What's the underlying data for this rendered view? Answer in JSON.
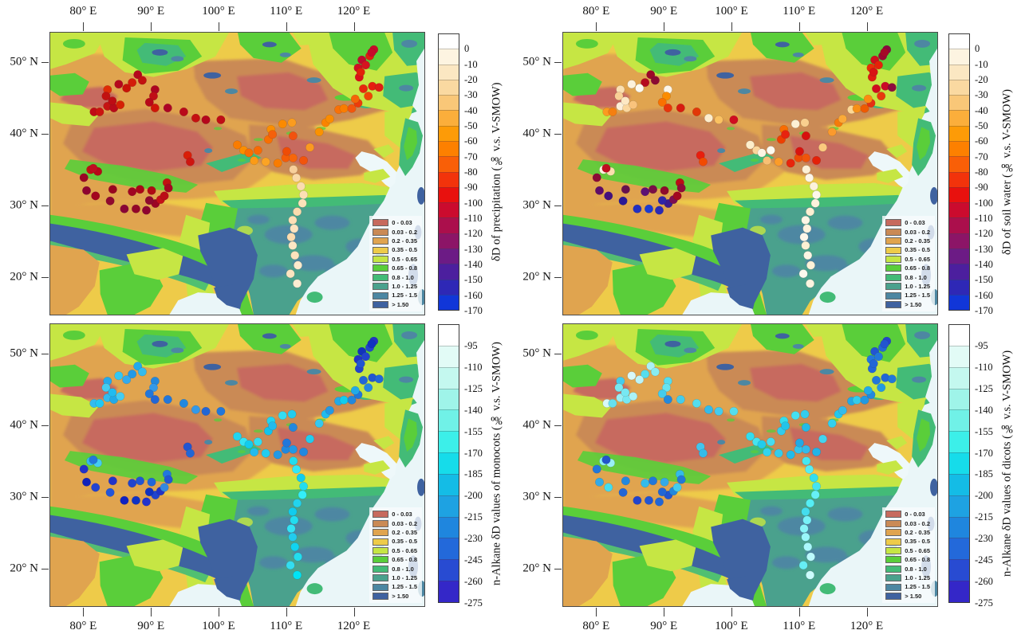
{
  "chart_data": {
    "type": "scatter",
    "subtype": "four-panel geographic map scatter over classified aridity basemap",
    "x_ticks": [
      "80° E",
      "90° E",
      "100° E",
      "110° E",
      "120° E"
    ],
    "x_tick_positions_pct": [
      9,
      27,
      45,
      63,
      81
    ],
    "y_ticks": [
      "50° N",
      "40° N",
      "30° N",
      "20° N"
    ],
    "y_tick_positions_pct": [
      10.7,
      36,
      61.3,
      86.4
    ],
    "background_classes": {
      "labels": [
        "0 - 0.03",
        "0.03 - 0.2",
        "0.2 - 0.35",
        "0.35 - 0.5",
        "0.5 - 0.65",
        "0.65 - 0.8",
        "0.8 - 1.0",
        "1.0 - 1.25",
        "1.25 - 1.5",
        "> 1.50"
      ],
      "colors": [
        "#c76a5e",
        "#ca8a55",
        "#e0a44f",
        "#eecb49",
        "#c6e644",
        "#5ace3a",
        "#43bb77",
        "#4aa18d",
        "#4d87a2",
        "#3f62a0"
      ]
    },
    "colorbars": {
      "water": {
        "ticks": [
          "0",
          "-10",
          "-20",
          "-30",
          "-40",
          "-50",
          "-60",
          "-70",
          "-80",
          "-90",
          "-100",
          "-110",
          "-120",
          "-130",
          "-140",
          "-150",
          "-160",
          "-170"
        ],
        "colors": [
          "#ffffff",
          "#fdf4e1",
          "#fbe7c2",
          "#fad9a1",
          "#f9c778",
          "#fbae3b",
          "#fd9b07",
          "#fd8000",
          "#f95f07",
          "#f2330b",
          "#e8110e",
          "#cb0b2e",
          "#ab0f4c",
          "#8c1567",
          "#6c1b85",
          "#4c1f9e",
          "#2e28b6",
          "#1136d8"
        ],
        "range": [
          0,
          -170
        ],
        "step": -10
      },
      "alkane": {
        "ticks": [
          "-95",
          "-110",
          "-125",
          "-140",
          "-155",
          "-170",
          "-185",
          "-200",
          "-215",
          "-230",
          "-245",
          "-260",
          "-275"
        ],
        "colors": [
          "#ffffff",
          "#e2fbf6",
          "#c4f8ef",
          "#9ff4e9",
          "#70f1e7",
          "#3cefe9",
          "#16dcea",
          "#14bce6",
          "#1ea2e2",
          "#1f86de",
          "#2369da",
          "#284bd2",
          "#3427c8"
        ],
        "range": [
          -95,
          -275
        ],
        "step": -15
      }
    },
    "sites_pct": [
      [
        23.4,
        14.9
      ],
      [
        24.6,
        16.9
      ],
      [
        21.9,
        17.7
      ],
      [
        18.3,
        18.3
      ],
      [
        15.3,
        20.2
      ],
      [
        14.9,
        22.5
      ],
      [
        28.0,
        20.2
      ],
      [
        27.6,
        22.5
      ],
      [
        26.5,
        24.7
      ],
      [
        28.0,
        26.7
      ],
      [
        15.3,
        26.1
      ],
      [
        17.0,
        26.7
      ],
      [
        18.7,
        25.6
      ],
      [
        11.7,
        28.1
      ],
      [
        13.2,
        28.1
      ],
      [
        31.4,
        26.7
      ],
      [
        35.7,
        28.1
      ],
      [
        38.9,
        30.3
      ],
      [
        41.6,
        30.9
      ],
      [
        45.6,
        30.9
      ],
      [
        36.7,
        43.5
      ],
      [
        37.4,
        45.8
      ],
      [
        10.8,
        48.6
      ],
      [
        12.7,
        49.2
      ],
      [
        20.4,
        19.7
      ],
      [
        16.6,
        24.2
      ],
      [
        50.0,
        39.8
      ],
      [
        51.7,
        41.7
      ],
      [
        53.1,
        42.6
      ],
      [
        54.5,
        45.4
      ],
      [
        55.5,
        41.7
      ],
      [
        57.6,
        45.8
      ],
      [
        60.8,
        46.3
      ],
      [
        62.9,
        44.4
      ],
      [
        63.2,
        42.1
      ],
      [
        64.9,
        44.4
      ],
      [
        67.7,
        45.3
      ],
      [
        69.4,
        40.7
      ],
      [
        58.3,
        37.9
      ],
      [
        59.0,
        34.3
      ],
      [
        59.4,
        36.1
      ],
      [
        62.1,
        32.4
      ],
      [
        64.6,
        31.9
      ],
      [
        64.9,
        36.6
      ],
      [
        71.9,
        35.2
      ],
      [
        73.6,
        31.9
      ],
      [
        74.7,
        30.6
      ],
      [
        77.1,
        27.3
      ],
      [
        78.5,
        26.9
      ],
      [
        80.6,
        26.9
      ],
      [
        82.3,
        25.0
      ],
      [
        83.7,
        19.9
      ],
      [
        86.1,
        19.0
      ],
      [
        87.9,
        19.4
      ],
      [
        85.0,
        22.5
      ],
      [
        81.5,
        23.5
      ],
      [
        82.6,
        15.8
      ],
      [
        82.3,
        12.5
      ],
      [
        83.3,
        9.7
      ],
      [
        85.4,
        8.3
      ],
      [
        86.5,
        6.0
      ],
      [
        84.3,
        11.5
      ],
      [
        83.0,
        14.0
      ],
      [
        85.9,
        7.0
      ],
      [
        9.0,
        51.4
      ],
      [
        11.5,
        48.1
      ],
      [
        9.7,
        56.0
      ],
      [
        12.1,
        57.9
      ],
      [
        16.0,
        59.7
      ],
      [
        16.7,
        55.6
      ],
      [
        19.8,
        62.5
      ],
      [
        21.9,
        56.4
      ],
      [
        22.9,
        62.5
      ],
      [
        24.0,
        55.6
      ],
      [
        25.7,
        63.0
      ],
      [
        27.1,
        56.0
      ],
      [
        28.1,
        60.6
      ],
      [
        29.5,
        59.2
      ],
      [
        30.5,
        57.9
      ],
      [
        31.2,
        53.2
      ],
      [
        31.6,
        55.1
      ],
      [
        26.5,
        59.5
      ],
      [
        65.0,
        48.5
      ],
      [
        65.8,
        51.5
      ],
      [
        67.0,
        54.5
      ],
      [
        67.7,
        57.5
      ],
      [
        67.4,
        60.5
      ],
      [
        66.0,
        63.5
      ],
      [
        64.8,
        66.5
      ],
      [
        65.2,
        69.5
      ],
      [
        64.4,
        72.5
      ],
      [
        64.8,
        75.5
      ],
      [
        65.4,
        79.0
      ],
      [
        66.2,
        82.5
      ],
      [
        64.2,
        85.5
      ],
      [
        66.0,
        89.0
      ]
    ],
    "panels": [
      {
        "key": "precipitation",
        "title": "δD of precipitation (‰ v.s. V-SMOW)",
        "colorbar": "water",
        "x_axis": "top",
        "dot_colors": [
          "#b5071c",
          "#c21110",
          "#d41d0a",
          "#b5071c",
          "#e02c05",
          "#c21110",
          "#ad0520",
          "#c00d16",
          "#b80818",
          "#d01608",
          "#c51312",
          "#b90a1a",
          "#d62005",
          "#c00d16",
          "#cb1410",
          "#ad0424",
          "#b90a1a",
          "#c51010",
          "#b5071c",
          "#c00d16",
          "#d91e08",
          "#ce1510",
          "#c21110",
          "#b80818",
          "#c91307",
          "#bd0c14",
          "#f97c00",
          "#fb8e00",
          "#f86f02",
          "#fb9b16",
          "#f86a04",
          "#fba424",
          "#f97c00",
          "#f55c08",
          "#ef4c06",
          "#f7660a",
          "#f2540c",
          "#fb9920",
          "#f86f02",
          "#fb8e00",
          "#f5600a",
          "#fb8a00",
          "#fb9c1e",
          "#f2520e",
          "#fb9200",
          "#fb8400",
          "#fb8c00",
          "#f97106",
          "#fa7d00",
          "#f3560d",
          "#ee3b0b",
          "#e7270c",
          "#e61d10",
          "#dd1d15",
          "#ef4505",
          "#f56508",
          "#dc0f1a",
          "#d00d24",
          "#c00a2e",
          "#e01c10",
          "#cb0b28",
          "#d51420",
          "#e22209",
          "#c70a2a",
          "#9c0425",
          "#c00d20",
          "#8e0330",
          "#a3061e",
          "#90082e",
          "#99041f",
          "#8a0536",
          "#a10522",
          "#930629",
          "#ab0718",
          "#8e0330",
          "#b00a14",
          "#9c0425",
          "#c50f18",
          "#bb0c16",
          "#c21110",
          "#a50620",
          "#90082e",
          "#f8cf9a",
          "#fbd9a8",
          "#fbdcae",
          "#fbdfb4",
          "#fce2ba",
          "#fbdcae",
          "#fcdfb6",
          "#fce4c0",
          "#fbdcb0",
          "#fce6c4",
          "#fce2bc",
          "#fdeacc",
          "#fce4c0",
          "#fdedd2"
        ]
      },
      {
        "key": "soil-water",
        "title": "δD of soil water (‰ v.s. V-SMOW)",
        "colorbar": "water",
        "x_axis": "top",
        "dot_colors": [
          "#9c0728",
          "#8c0a33",
          "#b50b1e",
          "#fdf2dc",
          "#fbe0b2",
          "#f9d096",
          "#fdf6e8",
          "#fb8c00",
          "#f97100",
          "#e8340a",
          "#fdf0d8",
          "#fbd79e",
          "#f9c37c",
          "#fb9a20",
          "#f57f10",
          "#d81b0f",
          "#e23708",
          "#fdeecd",
          "#fbc261",
          "#d00d20",
          "#e81e0e",
          "#f24a00",
          "#fdf4e0",
          "#fbdfae",
          "#fdfaf0",
          "#fde8c4",
          "#fdeecb",
          "#fbd69b",
          "#fdf4e2",
          "#f8c074",
          "#fdfbf2",
          "#fb9c28",
          "#e8250c",
          "#ee4a06",
          "#d9130f",
          "#f0540a",
          "#e42109",
          "#fbc97e",
          "#ee3f00",
          "#f86c00",
          "#e8230e",
          "#fdf0d4",
          "#f9cf8e",
          "#d7110e",
          "#fb9a2c",
          "#f57b0a",
          "#fbaa38",
          "#fdd896",
          "#f79018",
          "#ee5a02",
          "#e63012",
          "#d00d1e",
          "#cb0b26",
          "#8e0c3e",
          "#e8380e",
          "#fb8c10",
          "#e01b10",
          "#ea2e06",
          "#d00f1c",
          "#9c0632",
          "#8a0a40",
          "#e52209",
          "#d81314",
          "#a50828",
          "#8c0a36",
          "#c00d20",
          "#5f0c68",
          "#43107e",
          "#2a1896",
          "#66104f",
          "#2230c0",
          "#5c1174",
          "#1b3bd2",
          "#7a0e46",
          "#2b2ab4",
          "#8e0a2c",
          "#3c1c8e",
          "#7c0d52",
          "#a30620",
          "#bb0c16",
          "#900a38",
          "#2f24a8",
          "#fdf0d6",
          "#fdf6e8",
          "#fcf2da",
          "#fdf8ec",
          "#fdf2dc",
          "#fcefd2",
          "#fdf6e6",
          "#fdf3de",
          "#fdf7ea",
          "#fcf0d4",
          "#fdf5e4",
          "#fdf2d8",
          "#fdf8ee",
          "#fdf4e0"
        ]
      },
      {
        "key": "monocots",
        "title": "n-Alkane δD values of monocots (‰ v.s. V-SMOW)",
        "colorbar": "alkane",
        "x_axis": "bottom",
        "dot_colors": [
          "#22aaec",
          "#33bbee",
          "#2299e6",
          "#33c8f4",
          "#24aaec",
          "#44ccf0",
          "#2388dd",
          "#3399e8",
          "#2277da",
          "#2266d6",
          "#33bbee",
          "#22aae8",
          "#44ccf0",
          "#33bbf0",
          "#22c8f4",
          "#2277da",
          "#2288e0",
          "#3399e8",
          "#2266d6",
          "#2277da",
          "#2255d0",
          "#2266d6",
          "#33bbee",
          "#44ccf0",
          "#33aaec",
          "#22bbf0",
          "#22d4f0",
          "#33e4f4",
          "#11ccee",
          "#22bbee",
          "#33ddf0",
          "#22ccee",
          "#2299e4",
          "#2288dd",
          "#2277da",
          "#2299e4",
          "#2288e0",
          "#22ccee",
          "#11c4ec",
          "#22d4f0",
          "#22bbee",
          "#33ddf2",
          "#22ccee",
          "#2288dd",
          "#33c8f0",
          "#22bbec",
          "#2299e4",
          "#22aae8",
          "#11ccee",
          "#2288dd",
          "#2277da",
          "#2266d6",
          "#2255d0",
          "#2266d6",
          "#2288e0",
          "#22aae8",
          "#2244cc",
          "#2233c6",
          "#1133bb",
          "#2244ce",
          "#2233c6",
          "#2244cc",
          "#2255d2",
          "#1133c0",
          "#2233c8",
          "#2277da",
          "#1122bb",
          "#2244d2",
          "#2255da",
          "#2233c8",
          "#1122c0",
          "#2244cc",
          "#1133c4",
          "#2255d4",
          "#2233cc",
          "#2266d8",
          "#2244ce",
          "#2233c6",
          "#3388e0",
          "#2277dc",
          "#2255d2",
          "#1133c0",
          "#22ddee",
          "#33e8f6",
          "#11ccf0",
          "#22ddf0",
          "#33eef8",
          "#22d4ee",
          "#11ccee",
          "#22ddf0",
          "#33e4f4",
          "#22ccee",
          "#11d4f0",
          "#22ddee",
          "#33ddf0",
          "#00e4f6"
        ]
      },
      {
        "key": "dicots",
        "title": "n-Alkane δD values of dicots (‰ v.s. V-SMOW)",
        "colorbar": "alkane",
        "x_axis": "bottom",
        "dot_colors": [
          "#aaf0f6",
          "#88ecf2",
          "#55ddee",
          "#d8f8f8",
          "#44ccee",
          "#77e8f2",
          "#55ddee",
          "#66e4f0",
          "#44ccec",
          "#2288dd",
          "#99eef4",
          "#77e8f2",
          "#aaf2f6",
          "#d8f8f8",
          "#66e0f0",
          "#44ccec",
          "#55ddee",
          "#33bbea",
          "#44ccee",
          "#55ddee",
          "#44c4ec",
          "#33bbea",
          "#88ecf2",
          "#99f0f5",
          "#bbf4f8",
          "#77e8f2",
          "#33ddee",
          "#44e4f0",
          "#22ccec",
          "#33d4ee",
          "#44ddf0",
          "#33ccec",
          "#22bbe8",
          "#33c4ec",
          "#22aae6",
          "#33bbea",
          "#22b4e8",
          "#44d4ee",
          "#33ccec",
          "#33ddee",
          "#22c4ea",
          "#44e0f0",
          "#33ccec",
          "#22bbe8",
          "#33d0ee",
          "#22c8ec",
          "#33bbea",
          "#22aae6",
          "#33ccec",
          "#2299e2",
          "#2288de",
          "#2277da",
          "#2266d6",
          "#2277da",
          "#2299e2",
          "#22aae6",
          "#2266d8",
          "#2277dc",
          "#2255d2",
          "#2266d8",
          "#2244cc",
          "#2277da",
          "#2266d6",
          "#2255d0",
          "#2277da",
          "#2255cc",
          "#33aae8",
          "#44ddee",
          "#2266d6",
          "#2288de",
          "#2244cc",
          "#33bbea",
          "#2255d2",
          "#2277da",
          "#2266d6",
          "#33aae6",
          "#2255d0",
          "#2288dd",
          "#44ccee",
          "#33bbe8",
          "#2277d8",
          "#2266d4",
          "#44e8f2",
          "#55eef4",
          "#33ddf0",
          "#44e4f0",
          "#66f0f6",
          "#55eef4",
          "#44ddee",
          "#77f2f8",
          "#88f4f8",
          "#99f6fa",
          "#aaf8fb",
          "#bbfafc",
          "#66eef4",
          "#ccfcfd"
        ]
      }
    ]
  }
}
